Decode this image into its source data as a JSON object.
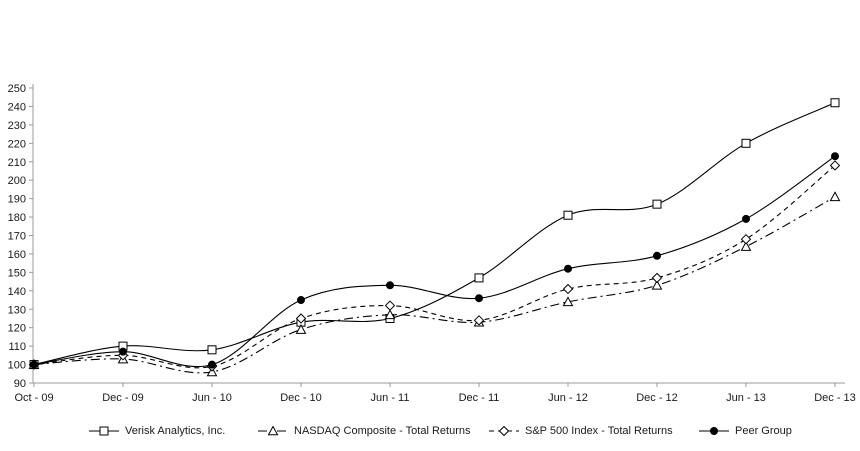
{
  "chart_data": {
    "type": "line",
    "title": "",
    "xlabel": "",
    "ylabel": "",
    "categories": [
      "Oct - 09",
      "Dec - 09",
      "Jun - 10",
      "Dec - 10",
      "Jun - 11",
      "Dec - 11",
      "Jun - 12",
      "Dec - 12",
      "Jun - 13",
      "Dec - 13"
    ],
    "series": [
      {
        "name": "Verisk Analytics, Inc.",
        "marker": "square-open",
        "line_style": "solid",
        "values": [
          100,
          110,
          108,
          123,
          125,
          147,
          181,
          187,
          220,
          242
        ]
      },
      {
        "name": "NASDAQ Composite - Total Returns",
        "marker": "triangle-open",
        "line_style": "dash-dot",
        "values": [
          100,
          103,
          96,
          119,
          127,
          123,
          134,
          143,
          164,
          191
        ]
      },
      {
        "name": "S&P 500 Index - Total Returns",
        "marker": "diamond-open",
        "line_style": "dashed",
        "values": [
          100,
          105,
          99,
          125,
          132,
          124,
          141,
          147,
          168,
          208
        ]
      },
      {
        "name": "Peer Group",
        "marker": "circle-filled",
        "line_style": "solid",
        "values": [
          100,
          107,
          100,
          135,
          143,
          136,
          152,
          159,
          179,
          213
        ]
      }
    ],
    "ylim": [
      90,
      250
    ],
    "ytick_step": 10,
    "grid": false,
    "legend_position": "bottom",
    "colors": {
      "line": "#000000",
      "text": "#1a1a1a",
      "axis": "#9b9b9b"
    }
  }
}
